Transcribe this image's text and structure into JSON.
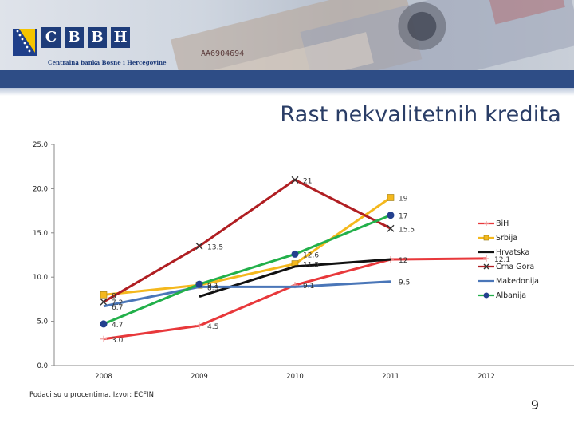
{
  "header": {
    "letters": [
      "C",
      "B",
      "B",
      "H"
    ],
    "bank_name": "Centralna banka Bosne i Hercegovine",
    "note_serial": "AA6904694"
  },
  "slide": {
    "title": "Rast nekvalitetnih kredita",
    "source": "Podaci su u procentima. Izvor: ECFIN",
    "page_number": "9"
  },
  "colors": {
    "banner_band": "#2e4d86",
    "BiH": "#e8383b",
    "Srbija": "#f4b81d",
    "Hrvatska": "#111111",
    "Crna Gora": "#b01e22",
    "Makedonija": "#4a76b8",
    "Albanija": "#22b04a"
  },
  "chart_data": {
    "type": "line",
    "title": "Rast nekvalitetnih kredita",
    "xlabel": "",
    "ylabel": "",
    "categories": [
      "2008",
      "2009",
      "2010",
      "2011",
      "2012"
    ],
    "y_tick_labels": [
      "0.0",
      "5.0",
      "10.0",
      "15.0",
      "20.0",
      "25.0"
    ],
    "ylim": [
      0,
      25
    ],
    "legend_position": "right",
    "series": [
      {
        "name": "BiH",
        "marker": "plus",
        "values": [
          3.0,
          4.5,
          9.1,
          12,
          12.1
        ],
        "labels": [
          "3.0",
          "4.5",
          "9.1",
          "12",
          "12.1"
        ]
      },
      {
        "name": "Srbija",
        "marker": "square",
        "values": [
          8,
          9.1,
          11.5,
          19,
          null
        ],
        "labels": [
          "8",
          "9.1",
          "11.5",
          "19",
          ""
        ]
      },
      {
        "name": "Hrvatska",
        "marker": "none",
        "values": [
          null,
          7.8,
          11.2,
          12,
          null
        ],
        "labels": [
          "",
          "",
          "",
          "",
          ""
        ]
      },
      {
        "name": "Crna Gora",
        "marker": "x",
        "values": [
          7.2,
          13.5,
          21,
          15.5,
          null
        ],
        "labels": [
          "7.2",
          "13.5",
          "21",
          "15.5",
          ""
        ]
      },
      {
        "name": "Makedonija",
        "marker": "none",
        "values": [
          6.7,
          8.9,
          8.9,
          9.5,
          null
        ],
        "labels": [
          "6.7",
          "8.9",
          "",
          "9.5",
          ""
        ]
      },
      {
        "name": "Albanija",
        "marker": "circle",
        "values": [
          4.7,
          9.2,
          12.6,
          17,
          null
        ],
        "labels": [
          "4.7",
          "",
          "12.6",
          "17",
          ""
        ]
      }
    ]
  }
}
